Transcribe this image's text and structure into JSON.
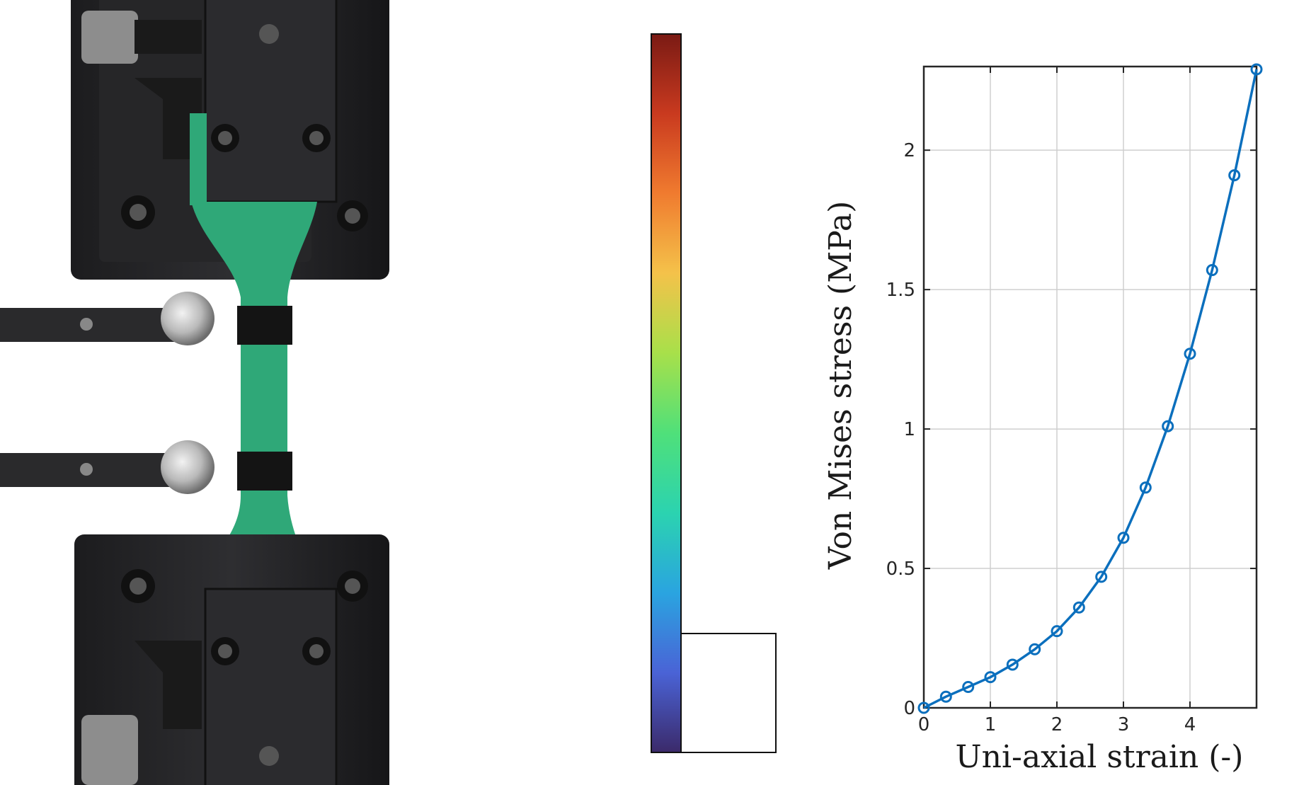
{
  "photo": {
    "subject": "tensile test specimen in grips with extensometer arms"
  },
  "colorbar": {
    "colors": [
      "#7a1a14",
      "#c93a1f",
      "#f07b2f",
      "#f4c24a",
      "#a8e04a",
      "#4fe07a",
      "#2bd3b0",
      "#2aa4e0",
      "#4a63d6",
      "#3b2a6a"
    ]
  },
  "chart_data": {
    "type": "line",
    "xlabel": "Uni-axial strain (-)",
    "ylabel": "Von Mises stress (MPa)",
    "xlim": [
      0,
      5
    ],
    "ylim": [
      0,
      2.3
    ],
    "xticks": [
      0,
      1,
      2,
      3,
      4
    ],
    "yticks": [
      0,
      0.5,
      1,
      1.5,
      2
    ],
    "grid": true,
    "marker": "circle",
    "color": "#0b6fbd",
    "series": [
      {
        "x": [
          0,
          0.333,
          0.667,
          1.0,
          1.333,
          1.667,
          2.0,
          2.333,
          2.667,
          3.0,
          3.333,
          3.667,
          4.0,
          4.333,
          4.667,
          5.0
        ],
        "y": [
          0,
          0.04,
          0.075,
          0.11,
          0.155,
          0.21,
          0.275,
          0.36,
          0.47,
          0.61,
          0.79,
          1.01,
          1.27,
          1.57,
          1.91,
          2.29
        ]
      }
    ]
  }
}
